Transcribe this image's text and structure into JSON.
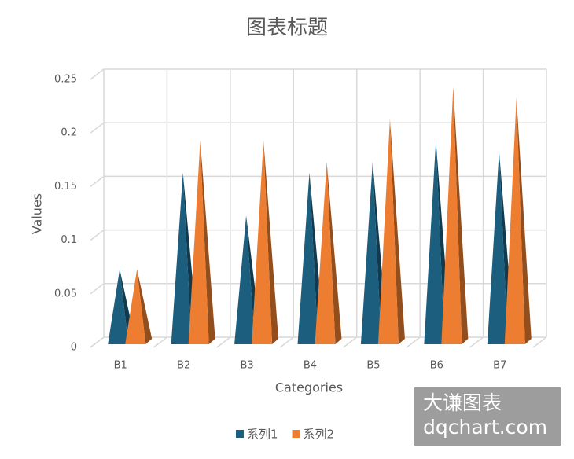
{
  "chart_data": {
    "type": "pyramid",
    "title": "图表标题",
    "x_label": "Categories",
    "y_label": "Values",
    "categories": [
      "B1",
      "B2",
      "B3",
      "B4",
      "B5",
      "B6",
      "B7"
    ],
    "series": [
      {
        "name": "系列1",
        "color": "#1b5e7e",
        "values": [
          0.07,
          0.16,
          0.12,
          0.16,
          0.17,
          0.19,
          0.18
        ]
      },
      {
        "name": "系列2",
        "color": "#ed7d31",
        "values": [
          0.07,
          0.19,
          0.19,
          0.17,
          0.21,
          0.24,
          0.23
        ]
      }
    ],
    "ylim": [
      0,
      0.25
    ],
    "yticks": [
      0,
      0.05,
      0.1,
      0.15,
      0.2,
      0.25
    ],
    "grid": true,
    "legend": "bottom"
  },
  "watermark": {
    "line1": "大谦图表",
    "line2": "dqchart.com"
  }
}
